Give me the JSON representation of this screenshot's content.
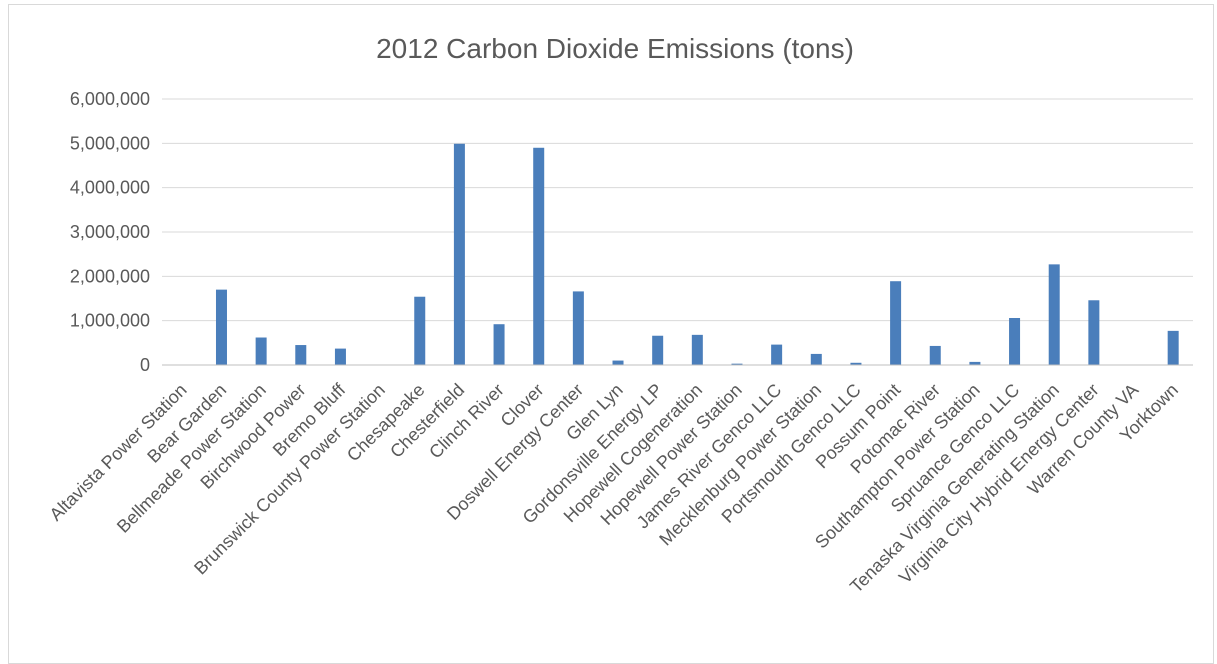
{
  "chart_data": {
    "type": "bar",
    "title": "2012 Carbon Dioxide Emissions (tons)",
    "xlabel": "",
    "ylabel": "",
    "ylim": [
      0,
      6000000
    ],
    "yticks": [
      "0",
      "1,000,000",
      "2,000,000",
      "3,000,000",
      "4,000,000",
      "5,000,000",
      "6,000,000"
    ],
    "grid": true,
    "legend": "none",
    "bar_color": "#4a7ebb",
    "categories": [
      "Altavista Power Station",
      "Bear Garden",
      "Bellmeade Power Station",
      "Birchwood Power",
      "Bremo Bluff",
      "Brunswick County Power Station",
      "Chesapeake",
      "Chesterfield",
      "Clinch River",
      "Clover",
      "Doswell Energy Center",
      "Glen Lyn",
      "Gordonsville Energy LP",
      "Hopewell Cogeneration",
      "Hopewell Power Station",
      "James River Genco LLC",
      "Mecklenburg Power Station",
      "Portsmouth Genco LLC",
      "Possum Point",
      "Potomac River",
      "Southampton Power Station",
      "Spruance Genco LLC",
      "Tenaska Virginia Generating Station",
      "Virginia City Hybrid Energy Center",
      "Warren County VA",
      "Yorktown"
    ],
    "values": [
      0,
      1700000,
      620000,
      450000,
      370000,
      0,
      1540000,
      4990000,
      920000,
      4900000,
      1660000,
      100000,
      660000,
      680000,
      30000,
      460000,
      250000,
      50000,
      1890000,
      430000,
      70000,
      1060000,
      2270000,
      1460000,
      0,
      770000
    ]
  }
}
